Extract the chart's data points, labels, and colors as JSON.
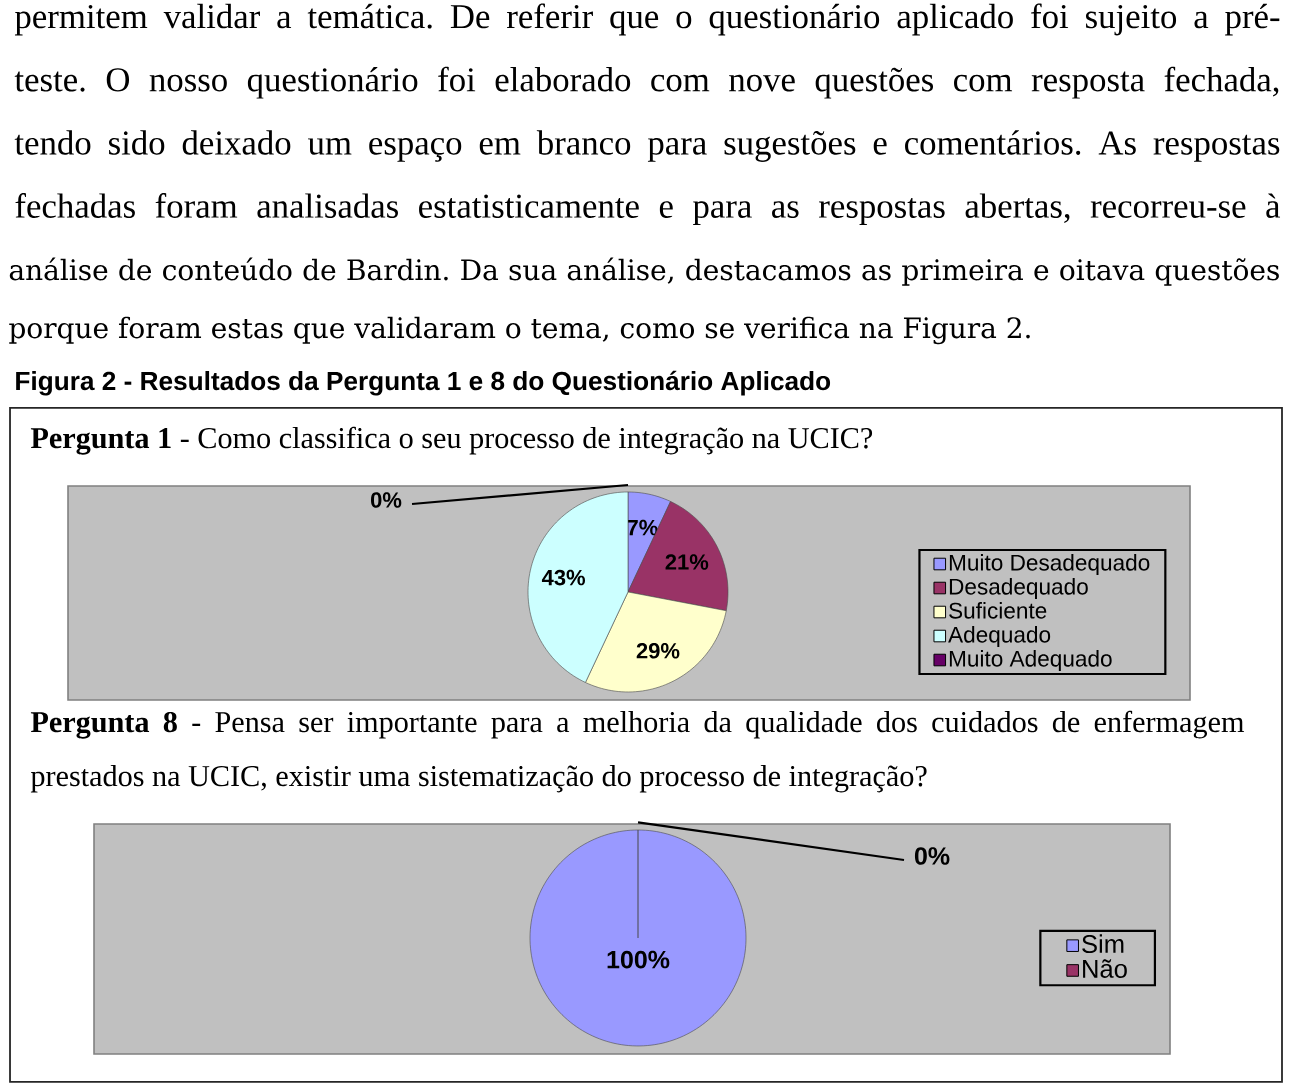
{
  "chart_data": [
    {
      "type": "pie",
      "title": "**Pergunta 1** - Como classifica o seu processo de integração na UCIC?",
      "categories": [
        "Muito Desadequado",
        "Desadequado",
        "Suficiente",
        "Adequado",
        "Muito Adequado"
      ],
      "values": [
        7,
        21,
        29,
        43,
        0
      ],
      "colors": [
        "#9999ff",
        "#993366",
        "#ffffcc",
        "#ccffff",
        "#660066"
      ],
      "value_labels": [
        "7%",
        "21%",
        "29%",
        "43%",
        "0%"
      ],
      "legend": "right",
      "annotations": [
        "permitem validar a temática. De referir que o questionário aplicado foi sujeito a pré-",
        "teste. O nosso questionário foi elaborado com nove questões com resposta fechada,",
        "tendo sido deixado um espaço em branco para sugestões e comentários. As respostas",
        "fechadas foram analisadas estatisticamente e para as respostas abertas, recorreu-se à",
        "análise de conteúdo de Bardin. Da sua análise, destacamos as primeira e oitava questões",
        "porque foram estas que validaram o tema, como se verifica na Figura 2.",
        "Figura 2 - Resultados da Pergunta 1 e 8 do Questionário Aplicado"
      ]
    },
    {
      "type": "pie",
      "title": "**Pergunta 8** - Pensa ser importante para a melhoria da qualidade dos cuidados de enfermagem prestados na UCIC, existir uma sistematização do processo de integração?",
      "categories": [
        "Sim",
        "Não"
      ],
      "values": [
        100,
        0
      ],
      "colors": [
        "#9999ff",
        "#993366"
      ],
      "value_labels": [
        "100%",
        "0%"
      ],
      "legend": "right"
    }
  ]
}
